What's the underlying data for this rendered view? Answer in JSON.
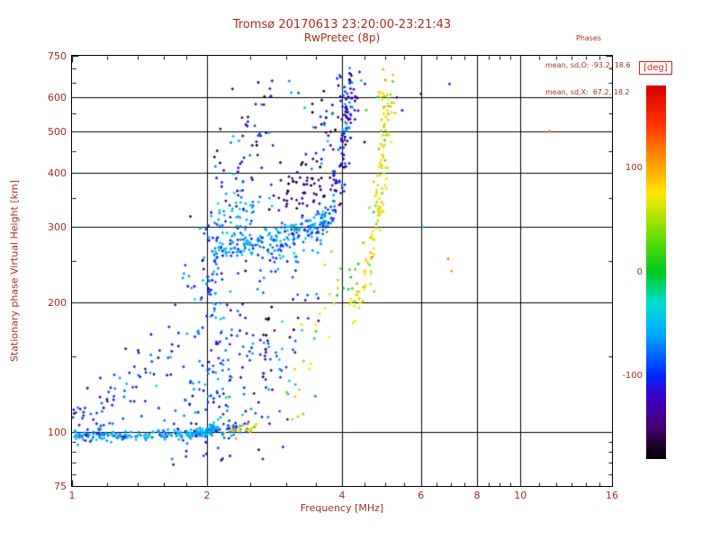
{
  "colors": {
    "background": "#ffffff",
    "label_text": "#a03020",
    "deg_label": "#dd1f1f",
    "frame": "#000000"
  },
  "chart_data": {
    "type": "scatter",
    "title": "Tromsø 20170613 23:20:00-23:21:43",
    "subtitle": "RwPretec (8p)",
    "xlabel": "Frequency [MHz]",
    "ylabel": "Stationary phase Virtual Height [km]",
    "x_scale": "log",
    "y_scale": "log",
    "xlim": [
      1,
      16
    ],
    "ylim": [
      75,
      750
    ],
    "x_ticks": [
      1,
      2,
      4,
      6,
      8,
      10,
      16
    ],
    "x_minor": [
      1.2,
      1.4,
      1.6,
      1.8,
      2.5,
      3,
      3.5,
      4.5,
      5,
      5.5,
      6.5,
      7,
      7.5,
      8.5,
      9,
      9.5,
      11,
      12,
      13,
      14,
      15
    ],
    "y_ticks": [
      75,
      100,
      200,
      300,
      400,
      500,
      600,
      750
    ],
    "y_minor": [
      80,
      85,
      90,
      95,
      150,
      250,
      350,
      450,
      550,
      650,
      700
    ],
    "x_gridlines": [
      2,
      4,
      6,
      8,
      10
    ],
    "y_gridlines": [
      100,
      200,
      300,
      400,
      500,
      600
    ],
    "grid": true,
    "stats": {
      "header": "Phases",
      "o_line": "mean, sd,O: -93.2, 18.6",
      "x_line": "mean, sd,X:  67.2, 18.2"
    },
    "colorbar": {
      "label": "[deg]",
      "ticks": [
        100,
        0,
        -100
      ],
      "range": [
        -180,
        180
      ],
      "position": "right"
    },
    "colormap": [
      [
        -180,
        "#000000"
      ],
      [
        -150,
        "#46006e"
      ],
      [
        -120,
        "#3c00c8"
      ],
      [
        -100,
        "#0028ff"
      ],
      [
        -60,
        "#00a8ff"
      ],
      [
        -30,
        "#00e0d0"
      ],
      [
        0,
        "#00c820"
      ],
      [
        40,
        "#7ce000"
      ],
      [
        75,
        "#ffe800"
      ],
      [
        110,
        "#ff9000"
      ],
      [
        145,
        "#ff3000"
      ],
      [
        180,
        "#d80000"
      ]
    ],
    "traces": [
      {
        "name": "e-layer-main",
        "seed": 11,
        "n": 240,
        "path": [
          [
            1.0,
            98
          ],
          [
            1.3,
            98
          ],
          [
            1.7,
            99
          ],
          [
            2.0,
            100
          ],
          [
            2.1,
            103
          ]
        ],
        "sf": 0.004,
        "sh": 0.005,
        "phase": [
          -62,
          16
        ]
      },
      {
        "name": "e-layer-blue-tail",
        "seed": 12,
        "n": 26,
        "path": [
          [
            2.1,
            101
          ],
          [
            2.45,
            102
          ]
        ],
        "sf": 0.006,
        "sh": 0.006,
        "phase": [
          -75,
          20
        ]
      },
      {
        "name": "e-layer-yellow-tail",
        "seed": 13,
        "n": 22,
        "path": [
          [
            2.2,
            100
          ],
          [
            2.6,
            103
          ]
        ],
        "sf": 0.008,
        "sh": 0.007,
        "phase": [
          80,
          28
        ]
      },
      {
        "name": "left-low-cluster",
        "seed": 14,
        "n": 40,
        "path": [
          [
            1.02,
            104
          ],
          [
            1.1,
            110
          ],
          [
            1.2,
            124
          ]
        ],
        "sf": 0.015,
        "sh": 0.03,
        "phase": [
          -95,
          25
        ]
      },
      {
        "name": "left-mid-cluster",
        "seed": 15,
        "n": 42,
        "path": [
          [
            1.22,
            112
          ],
          [
            1.35,
            128
          ],
          [
            1.5,
            142
          ],
          [
            1.62,
            150
          ]
        ],
        "sf": 0.02,
        "sh": 0.05,
        "phase": [
          -100,
          30
        ]
      },
      {
        "name": "lower-mid-blob",
        "seed": 16,
        "n": 150,
        "path": [
          [
            1.75,
            108
          ],
          [
            1.95,
            118
          ],
          [
            2.1,
            132
          ],
          [
            2.3,
            148
          ],
          [
            2.5,
            160
          ]
        ],
        "sf": 0.03,
        "sh": 0.09,
        "phase": [
          -95,
          30
        ]
      },
      {
        "name": "riser-2mhz",
        "seed": 17,
        "n": 50,
        "path": [
          [
            2.0,
            190
          ],
          [
            2.04,
            215
          ],
          [
            2.07,
            240
          ],
          [
            2.1,
            258
          ]
        ],
        "sf": 0.012,
        "sh": 0.05,
        "phase": [
          -90,
          28
        ]
      },
      {
        "name": "riser-left",
        "seed": 31,
        "n": 10,
        "path": [
          [
            1.72,
            200
          ],
          [
            1.85,
            225
          ]
        ],
        "sf": 0.02,
        "sh": 0.05,
        "phase": [
          -95,
          30
        ]
      },
      {
        "name": "o-trace-flat",
        "seed": 18,
        "n": 210,
        "path": [
          [
            2.05,
            262
          ],
          [
            2.35,
            270
          ],
          [
            2.7,
            278
          ],
          [
            3.1,
            288
          ],
          [
            3.5,
            300
          ],
          [
            3.8,
            325
          ]
        ],
        "sf": 0.01,
        "sh": 0.016,
        "phase": [
          -72,
          24
        ]
      },
      {
        "name": "o-trace-steep",
        "seed": 19,
        "n": 95,
        "path": [
          [
            3.82,
            335
          ],
          [
            3.95,
            395
          ],
          [
            4.05,
            470
          ],
          [
            4.12,
            545
          ],
          [
            4.2,
            625
          ]
        ],
        "sf": 0.006,
        "sh": 0.03,
        "phase": [
          -112,
          30
        ]
      },
      {
        "name": "f-trace-inner-scatter",
        "seed": 30,
        "n": 45,
        "path": [
          [
            2.6,
            248
          ],
          [
            2.9,
            260
          ],
          [
            3.2,
            272
          ]
        ],
        "sf": 0.02,
        "sh": 0.03,
        "phase": [
          -80,
          30
        ]
      },
      {
        "name": "o-upper-left-cluster",
        "seed": 20,
        "n": 55,
        "path": [
          [
            2.1,
            300
          ],
          [
            2.3,
            315
          ],
          [
            2.55,
            335
          ]
        ],
        "sf": 0.02,
        "sh": 0.035,
        "phase": [
          -60,
          22
        ]
      },
      {
        "name": "scatter-2p3-380",
        "seed": 32,
        "n": 16,
        "path": [
          [
            2.15,
            350
          ],
          [
            2.35,
            385
          ],
          [
            2.5,
            410
          ]
        ],
        "sf": 0.02,
        "sh": 0.04,
        "phase": [
          -90,
          40
        ]
      },
      {
        "name": "second-hop-scatter",
        "seed": 21,
        "n": 45,
        "path": [
          [
            2.05,
            380
          ],
          [
            2.25,
            440
          ],
          [
            2.5,
            510
          ],
          [
            2.75,
            590
          ],
          [
            2.85,
            620
          ]
        ],
        "sf": 0.025,
        "sh": 0.045,
        "phase": [
          -125,
          40
        ]
      },
      {
        "name": "purple-cluster",
        "seed": 22,
        "n": 60,
        "path": [
          [
            2.95,
            335
          ],
          [
            3.2,
            355
          ],
          [
            3.45,
            375
          ],
          [
            3.6,
            390
          ]
        ],
        "sf": 0.02,
        "sh": 0.03,
        "phase": [
          -148,
          18
        ]
      },
      {
        "name": "steep-top-scatter",
        "seed": 23,
        "n": 70,
        "path": [
          [
            3.5,
            430
          ],
          [
            3.7,
            490
          ],
          [
            3.9,
            550
          ],
          [
            4.1,
            620
          ],
          [
            4.3,
            650
          ]
        ],
        "sf": 0.025,
        "sh": 0.04,
        "phase": [
          -115,
          45
        ]
      },
      {
        "name": "x-trace",
        "seed": 24,
        "n": 125,
        "path": [
          [
            4.2,
            200
          ],
          [
            4.45,
            225
          ],
          [
            4.65,
            265
          ],
          [
            4.8,
            330
          ],
          [
            4.9,
            420
          ],
          [
            4.97,
            510
          ],
          [
            5.03,
            585
          ]
        ],
        "sf": 0.006,
        "sh": 0.025,
        "phase": [
          70,
          18
        ]
      },
      {
        "name": "x-green-foot",
        "seed": 25,
        "n": 10,
        "path": [
          [
            4.05,
            205
          ],
          [
            4.3,
            225
          ]
        ],
        "sf": 0.012,
        "sh": 0.03,
        "phase": [
          18,
          15
        ]
      },
      {
        "name": "yellow-mid",
        "seed": 33,
        "n": 10,
        "path": [
          [
            3.55,
            195
          ],
          [
            3.8,
            212
          ],
          [
            3.95,
            228
          ]
        ],
        "sf": 0.015,
        "sh": 0.04,
        "phase": [
          78,
          22
        ]
      },
      {
        "name": "x-top-scatter",
        "seed": 26,
        "n": 20,
        "path": [
          [
            4.95,
            520
          ],
          [
            5.1,
            590
          ],
          [
            5.18,
            630
          ]
        ],
        "sf": 0.012,
        "sh": 0.03,
        "phase": [
          85,
          28
        ]
      },
      {
        "name": "column-2p7",
        "seed": 27,
        "n": 28,
        "path": [
          [
            2.66,
            115
          ],
          [
            2.7,
            150
          ],
          [
            2.74,
            195
          ]
        ],
        "sf": 0.008,
        "sh": 0.09,
        "phase": [
          -140,
          40
        ]
      },
      {
        "name": "mid-sporadic",
        "seed": 28,
        "n": 38,
        "path": [
          [
            2.9,
            130
          ],
          [
            3.1,
            150
          ],
          [
            3.3,
            175
          ],
          [
            3.45,
            200
          ]
        ],
        "sf": 0.025,
        "sh": 0.08,
        "phase": [
          -85,
          45
        ]
      },
      {
        "name": "yellow-sporadic",
        "seed": 29,
        "n": 10,
        "path": [
          [
            3.15,
            120
          ],
          [
            3.3,
            140
          ]
        ],
        "sf": 0.015,
        "sh": 0.05,
        "phase": [
          80,
          25
        ]
      }
    ],
    "isolated_points": [
      [
        6.0,
        612,
        -160
      ],
      [
        6.95,
        645,
        -110
      ],
      [
        6.9,
        253,
        115
      ],
      [
        7.02,
        237,
        108
      ],
      [
        11.6,
        500,
        130
      ],
      [
        2.28,
        628,
        -148
      ],
      [
        4.5,
        645,
        -135
      ],
      [
        5.3,
        600,
        -150
      ],
      [
        5.45,
        560,
        -120
      ],
      [
        3.05,
        655,
        -70
      ],
      [
        3.2,
        615,
        -95
      ],
      [
        6.05,
        300,
        -60
      ]
    ]
  }
}
